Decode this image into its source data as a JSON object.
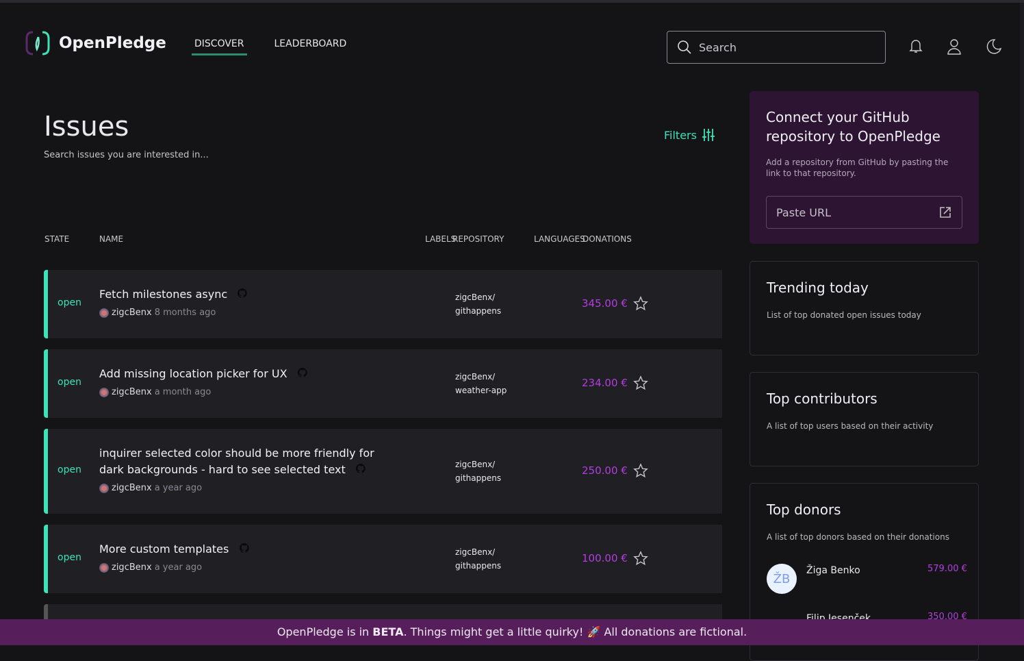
{
  "app": {
    "name": "OpenPledge"
  },
  "nav": [
    {
      "label": "DISCOVER",
      "active": true
    },
    {
      "label": "LEADERBOARD",
      "active": false
    }
  ],
  "search": {
    "placeholder": "Search"
  },
  "page": {
    "title": "Issues",
    "subtitle": "Search issues you are interested in...",
    "filters_label": "Filters"
  },
  "table": {
    "headers": [
      "STATE",
      "NAME",
      "LABELS",
      "REPOSITORY",
      "LANGUAGES",
      "DONATIONS"
    ],
    "rows": [
      {
        "state": "open",
        "title": "Fetch milestones async",
        "author": "zigcBenx",
        "ago": "8 months ago",
        "repo_owner": "zigcBenx/",
        "repo_name": "githappens",
        "donation": "345.00 €"
      },
      {
        "state": "open",
        "title": "Add missing location picker for UX",
        "author": "zigcBenx",
        "ago": "a month ago",
        "repo_owner": "zigcBenx/",
        "repo_name": "weather-app",
        "donation": "234.00 €"
      },
      {
        "state": "open",
        "title": "inquirer selected color should be more friendly for dark backgrounds - hard to see selected text",
        "author": "zigcBenx",
        "ago": "a year ago",
        "repo_owner": "zigcBenx/",
        "repo_name": "githappens",
        "donation": "250.00 €"
      },
      {
        "state": "open",
        "title": "More custom templates",
        "author": "zigcBenx",
        "ago": "a year ago",
        "repo_owner": "zigcBenx/",
        "repo_name": "githappens",
        "donation": "100.00 €"
      }
    ]
  },
  "sidebar": {
    "connect": {
      "title": "Connect your GitHub repository to OpenPledge",
      "text": "Add a repository from GitHub by pasting the link to that repository.",
      "paste_label": "Paste URL"
    },
    "trending": {
      "title": "Trending today",
      "text": "List of top donated open issues today"
    },
    "contributors": {
      "title": "Top contributors",
      "text": "A list of top users based on their activity"
    },
    "donors": {
      "title": "Top donors",
      "text": "A list of top donors based on their donations",
      "items": [
        {
          "initials": "ŽB",
          "name": "Žiga Benko",
          "amount": "579.00 €"
        },
        {
          "initials": "",
          "name": "Filip Jesenček",
          "amount": "350.00 €"
        }
      ]
    }
  },
  "banner": {
    "pre": "OpenPledge is in ",
    "bold": "BETA",
    "post": ". Things might get a little quirky! 🚀 All donations are fictional."
  },
  "colors": {
    "accent": "#3ee2b8",
    "donation": "#b43fe0",
    "banner": "#561f5c"
  }
}
